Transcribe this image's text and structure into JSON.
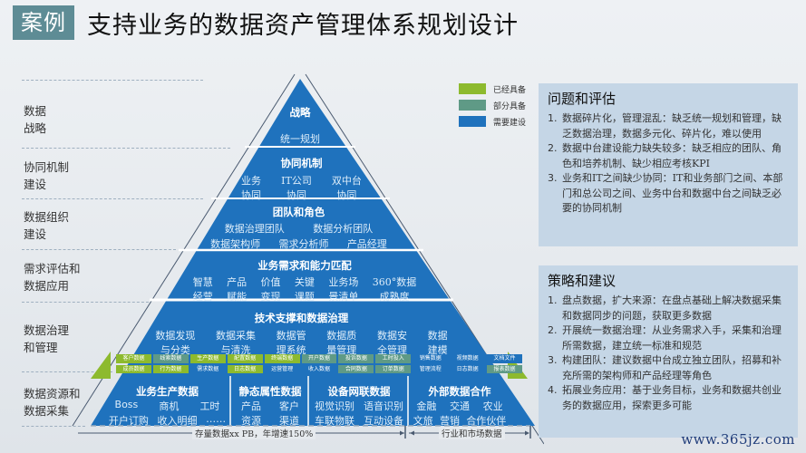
{
  "header": {
    "tag": "案例",
    "title": "支持业务的数据资产管理体系规划设计"
  },
  "levels": [
    {
      "label_lines": [
        "数据",
        "战略"
      ]
    },
    {
      "label_lines": [
        "协同机制",
        "建设"
      ]
    },
    {
      "label_lines": [
        "数据组织",
        "建设"
      ]
    },
    {
      "label_lines": [
        "需求评估和",
        "数据应用"
      ]
    },
    {
      "label_lines": [
        "数据治理",
        "和管理"
      ]
    },
    {
      "label_lines": [
        "数据资源和",
        "数据采集"
      ]
    }
  ],
  "pyramid": {
    "strategy": {
      "title": "战略",
      "items": [
        "统一规划"
      ]
    },
    "collaboration": {
      "title": "协同机制",
      "items": [
        [
          "业务",
          "协同"
        ],
        [
          "IT公司",
          "协同"
        ],
        [
          "双中台",
          "协同"
        ]
      ]
    },
    "team": {
      "title": "团队和角色",
      "row1": [
        "数据治理团队",
        "数据分析团队"
      ],
      "row2": [
        "数据架构师",
        "需求分析师",
        "产品经理"
      ]
    },
    "demand": {
      "title": "业务需求和能力匹配",
      "items": [
        [
          "智慧",
          "经营"
        ],
        [
          "产品",
          "赋能"
        ],
        [
          "价值",
          "变现"
        ],
        [
          "关键",
          "课题"
        ],
        [
          "业务场",
          "景清单"
        ],
        [
          "360°数据",
          "成熟度"
        ]
      ]
    },
    "tech": {
      "title": "技术支撑和数据治理",
      "items": [
        [
          "数据发现",
          "与分类"
        ],
        [
          "数据采集",
          "与清洗"
        ],
        [
          "数据管",
          "理系统"
        ],
        [
          "数据质",
          "量管理"
        ],
        [
          "数据安",
          "全管理"
        ],
        [
          "数据",
          "建模"
        ]
      ]
    },
    "data_cells": {
      "row1": [
        {
          "label": "客户数据",
          "status": "green"
        },
        {
          "label": "线索数据",
          "status": "teal"
        },
        {
          "label": "生产数据",
          "status": "green"
        },
        {
          "label": "配置数据",
          "status": "green"
        },
        {
          "label": "终端数据",
          "status": "green"
        },
        {
          "label": "开户数据",
          "status": "teal"
        },
        {
          "label": "投诉数据",
          "status": "teal"
        },
        {
          "label": "工时投入",
          "status": "teal"
        },
        {
          "label": "销售数据",
          "status": "blue"
        },
        {
          "label": "视频数据",
          "status": "blue"
        },
        {
          "label": "文档文件",
          "status": "blue"
        }
      ],
      "row2": [
        {
          "label": "成员数据",
          "status": "green"
        },
        {
          "label": "行为数据",
          "status": "green"
        },
        {
          "label": "需求数据",
          "status": "blue"
        },
        {
          "label": "日志数据",
          "status": "green"
        },
        {
          "label": "运营管理",
          "status": "blue"
        },
        {
          "label": "收入数据",
          "status": "blue"
        },
        {
          "label": "合同数据",
          "status": "teal"
        },
        {
          "label": "订单数据",
          "status": "teal"
        },
        {
          "label": "管理流程",
          "status": "blue"
        },
        {
          "label": "日志数据",
          "status": "blue"
        },
        {
          "label": "报表数据",
          "status": "teal"
        }
      ]
    },
    "bottom": [
      {
        "title": "业务生产数据",
        "row1": [
          "Boss",
          "商机",
          "工时"
        ],
        "row2": [
          "开户订购",
          "收入明细",
          "……"
        ]
      },
      {
        "title": "静态属性数据",
        "row1": [
          "产品",
          "客户"
        ],
        "row2": [
          "资源",
          "渠道"
        ]
      },
      {
        "title": "设备网联数据",
        "row1": [
          "视觉识别",
          "语音识别"
        ],
        "row2": [
          "车联物联",
          "互动设备"
        ]
      },
      {
        "title": "外部数据合作",
        "row1": [
          "金融",
          "交通",
          "农业"
        ],
        "row2": [
          "文旅",
          "营销",
          "合作伙伴"
        ]
      }
    ],
    "axis": {
      "left": "存量数据xx PB，年增速150%",
      "right": "行业和市场数据"
    }
  },
  "legend": [
    {
      "label": "已经具备",
      "color": "#8dba2e"
    },
    {
      "label": "部分具备",
      "color": "#5f9a86"
    },
    {
      "label": "需要建设",
      "color": "#1f72bd"
    }
  ],
  "colors": {
    "pyramid_blue": "#1f72bd",
    "green": "#8dba2e",
    "teal": "#5f9a86",
    "panel_bg": "#c5d6e6",
    "tag_bg": "#5e8c95"
  },
  "panels": {
    "issues": {
      "title": "问题和评估",
      "items": [
        {
          "num": "1.",
          "text": "数据碎片化，管理混乱：缺乏统一规划和管理，缺乏数据治理，数据多元化、碎片化，难以使用"
        },
        {
          "num": "2.",
          "text": "数据中台建设能力缺失较多：缺乏相应的团队、角色和培养机制、缺少相应考核KPI"
        },
        {
          "num": "3.",
          "text": "业务和IT之间缺少协同：IT和业务部门之间、本部门和总公司之间、业务中台和数据中台之间缺乏必要的协同机制"
        }
      ]
    },
    "strategy": {
      "title": "策略和建议",
      "items": [
        {
          "num": "1.",
          "text": "盘点数据，扩大来源：在盘点基础上解决数据采集和数据同步的问题，获取更多数据"
        },
        {
          "num": "2.",
          "text": "开展统一数据治理：从业务需求入手，采集和治理所需数据，建立统一标准和规范"
        },
        {
          "num": "3.",
          "text": "构建团队：建议数据中台成立独立团队，招募和补充所需的架构师和产品经理等角色"
        },
        {
          "num": "4.",
          "text": "拓展业务应用：基于业务目标，业务和数据共创业务的数据应用，探索更多可能"
        }
      ]
    }
  },
  "watermark": "www.365jz.com"
}
